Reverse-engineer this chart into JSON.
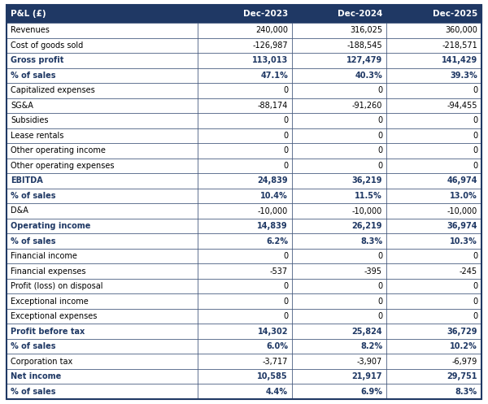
{
  "header_bg": "#1F3864",
  "header_text_color": "#FFFFFF",
  "bold_row_text_color": "#1F3864",
  "normal_text_color": "#000000",
  "border_color": "#1F3864",
  "col_header": "P&L (£)",
  "columns": [
    "Dec-2023",
    "Dec-2024",
    "Dec-2025"
  ],
  "rows": [
    {
      "label": "Revenues",
      "values": [
        "240,000",
        "316,025",
        "360,000"
      ],
      "bold": false
    },
    {
      "label": "Cost of goods sold",
      "values": [
        "-126,987",
        "-188,545",
        "-218,571"
      ],
      "bold": false
    },
    {
      "label": "Gross profit",
      "values": [
        "113,013",
        "127,479",
        "141,429"
      ],
      "bold": true
    },
    {
      "label": "% of sales",
      "values": [
        "47.1%",
        "40.3%",
        "39.3%"
      ],
      "bold": true
    },
    {
      "label": "Capitalized expenses",
      "values": [
        "0",
        "0",
        "0"
      ],
      "bold": false
    },
    {
      "label": "SG&A",
      "values": [
        "-88,174",
        "-91,260",
        "-94,455"
      ],
      "bold": false
    },
    {
      "label": "Subsidies",
      "values": [
        "0",
        "0",
        "0"
      ],
      "bold": false
    },
    {
      "label": "Lease rentals",
      "values": [
        "0",
        "0",
        "0"
      ],
      "bold": false
    },
    {
      "label": "Other operating income",
      "values": [
        "0",
        "0",
        "0"
      ],
      "bold": false
    },
    {
      "label": "Other operating expenses",
      "values": [
        "0",
        "0",
        "0"
      ],
      "bold": false
    },
    {
      "label": "EBITDA",
      "values": [
        "24,839",
        "36,219",
        "46,974"
      ],
      "bold": true
    },
    {
      "label": "% of sales",
      "values": [
        "10.4%",
        "11.5%",
        "13.0%"
      ],
      "bold": true
    },
    {
      "label": "D&A",
      "values": [
        "-10,000",
        "-10,000",
        "-10,000"
      ],
      "bold": false
    },
    {
      "label": "Operating income",
      "values": [
        "14,839",
        "26,219",
        "36,974"
      ],
      "bold": true
    },
    {
      "label": "% of sales",
      "values": [
        "6.2%",
        "8.3%",
        "10.3%"
      ],
      "bold": true
    },
    {
      "label": "Financial income",
      "values": [
        "0",
        "0",
        "0"
      ],
      "bold": false
    },
    {
      "label": "Financial expenses",
      "values": [
        "-537",
        "-395",
        "-245"
      ],
      "bold": false
    },
    {
      "label": "Profit (loss) on disposal",
      "values": [
        "0",
        "0",
        "0"
      ],
      "bold": false
    },
    {
      "label": "Exceptional income",
      "values": [
        "0",
        "0",
        "0"
      ],
      "bold": false
    },
    {
      "label": "Exceptional expenses",
      "values": [
        "0",
        "0",
        "0"
      ],
      "bold": false
    },
    {
      "label": "Profit before tax",
      "values": [
        "14,302",
        "25,824",
        "36,729"
      ],
      "bold": true
    },
    {
      "label": "% of sales",
      "values": [
        "6.0%",
        "8.2%",
        "10.2%"
      ],
      "bold": true
    },
    {
      "label": "Corporation tax",
      "values": [
        "-3,717",
        "-3,907",
        "-6,979"
      ],
      "bold": false
    },
    {
      "label": "Net income",
      "values": [
        "10,585",
        "21,917",
        "29,751"
      ],
      "bold": true
    },
    {
      "label": "% of sales",
      "values": [
        "4.4%",
        "6.9%",
        "8.3%"
      ],
      "bold": true
    }
  ],
  "figsize": [
    6.0,
    4.97
  ],
  "dpi": 100
}
